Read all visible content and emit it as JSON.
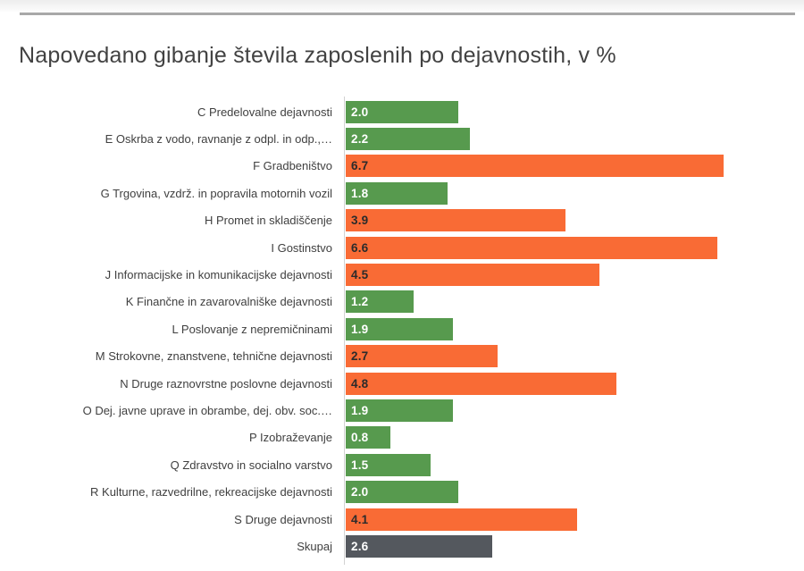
{
  "page": {
    "title": "Napovedano gibanje števila zaposlenih po dejavnostih, v %"
  },
  "palette": {
    "green": "#579A4E",
    "orange": "#F96B35",
    "dark": "#54585E",
    "value_text_on_green": "#FFFFFF",
    "value_text_on_orange": "#2B2B2B",
    "value_text_on_dark": "#FFFFFF",
    "category_text": "#404040",
    "title_text": "#424242",
    "axis_line": "#D2D2D2",
    "top_rule": "#A8A8A8"
  },
  "chart_data": {
    "type": "bar",
    "orientation": "horizontal",
    "title": "Napovedano gibanje števila zaposlenih po dejavnostih, v %",
    "xlabel": "",
    "ylabel": "",
    "xlim": [
      0,
      6.7
    ],
    "grid": false,
    "legend": false,
    "unit": "%",
    "categories": [
      "C Predelovalne dejavnosti",
      "E Oskrba z vodo, ravnanje z odpl. in odp.,…",
      "F Gradbeništvo",
      "G Trgovina, vzdrž. in popravila motornih vozil",
      "H Promet in skladiščenje",
      "I Gostinstvo",
      "J Informacijske in komunikacijske dejavnosti",
      "K Finančne in zavarovalniške dejavnosti",
      "L Poslovanje z nepremičninami",
      "M Strokovne, znanstvene, tehnične dejavnosti",
      "N Druge raznovrstne poslovne dejavnosti",
      "O Dej. javne uprave in obrambe, dej. obv. soc.…",
      "P Izobraževanje",
      "Q Zdravstvo in socialno varstvo",
      "R Kulturne, razvedrilne, rekreacijske dejavnosti",
      "S Druge dejavnosti",
      "Skupaj"
    ],
    "values": [
      2.0,
      2.2,
      6.7,
      1.8,
      3.9,
      6.6,
      4.5,
      1.2,
      1.9,
      2.7,
      4.8,
      1.9,
      0.8,
      1.5,
      2.0,
      4.1,
      2.6
    ],
    "value_labels": [
      "2.0",
      "2.2",
      "6.7",
      "1.8",
      "3.9",
      "6.6",
      "4.5",
      "1.2",
      "1.9",
      "2.7",
      "4.8",
      "1.9",
      "0.8",
      "1.5",
      "2.0",
      "4.1",
      "2.6"
    ],
    "bar_color_roles": [
      "green",
      "green",
      "orange",
      "green",
      "orange",
      "orange",
      "orange",
      "green",
      "green",
      "orange",
      "orange",
      "green",
      "green",
      "green",
      "green",
      "orange",
      "dark"
    ]
  }
}
